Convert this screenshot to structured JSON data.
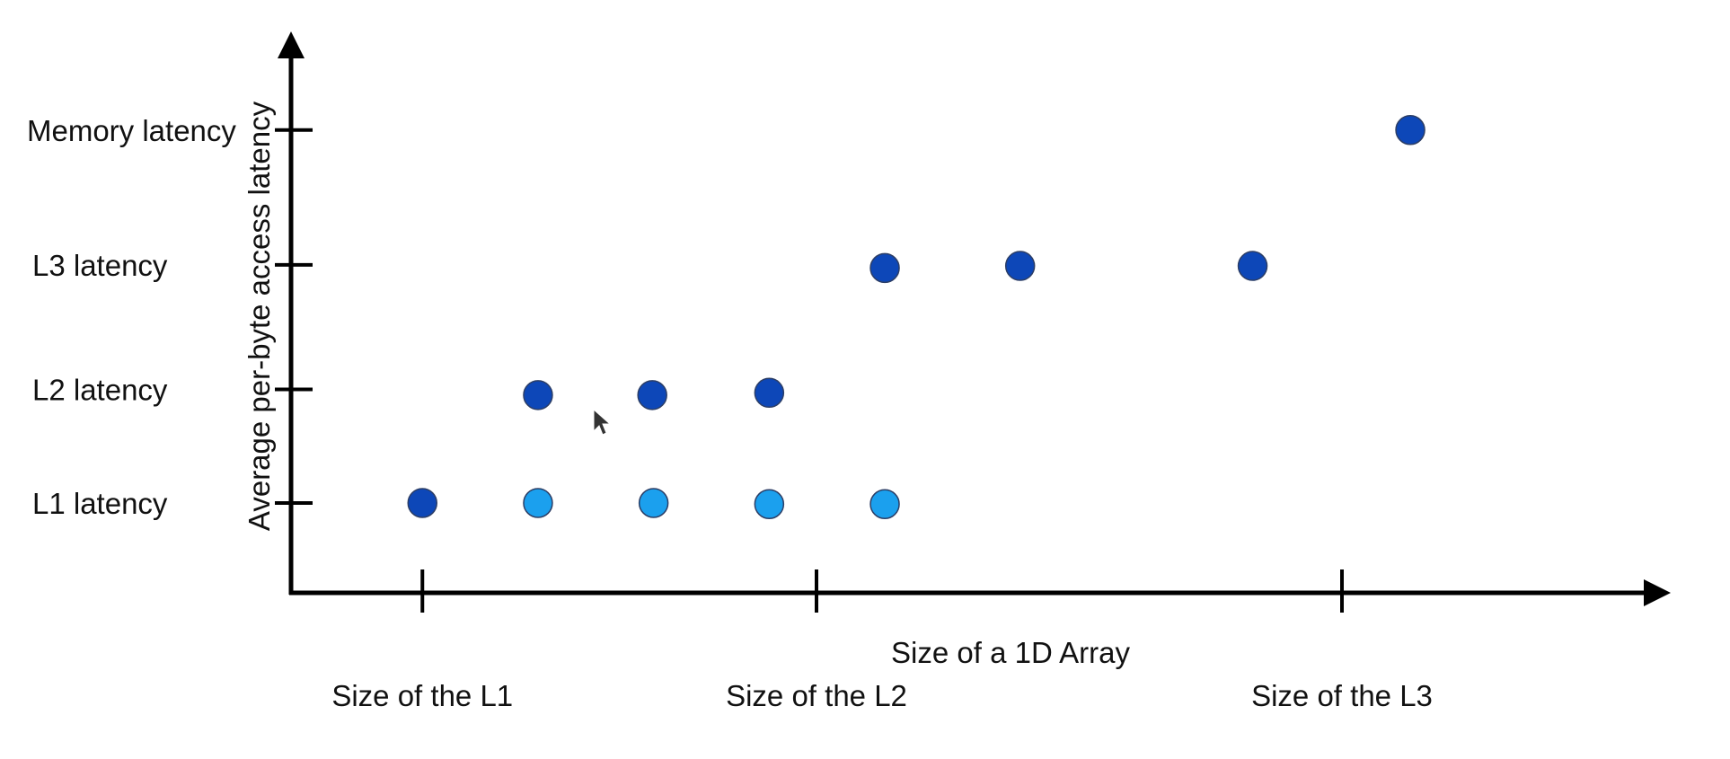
{
  "chart_data": {
    "type": "scatter",
    "title": "",
    "xlabel": "Size of a 1D Array",
    "ylabel": "Average per-byte access latency",
    "x_ticks": [
      {
        "value": 1,
        "label": "Size of the L1"
      },
      {
        "value": 4,
        "label": "Size of the L2"
      },
      {
        "value": 8,
        "label": "Size of the L3"
      }
    ],
    "y_ticks": [
      {
        "value": 1,
        "label": "L1 latency"
      },
      {
        "value": 2,
        "label": "L2 latency"
      },
      {
        "value": 3.2,
        "label": "L3 latency"
      },
      {
        "value": 4.5,
        "label": "Memory latency"
      }
    ],
    "xlim": [
      0,
      10.4
    ],
    "ylim": [
      0.3,
      4.95
    ],
    "grid": false,
    "colors": {
      "dark_point": "#0d47b8",
      "light_point": "#1ba0ee",
      "axis": "#000000"
    },
    "series": [
      {
        "color": "#0d47b8",
        "points": [
          {
            "x": 1.0,
            "y": 1.0
          },
          {
            "x": 1.88,
            "y": 1.95
          },
          {
            "x": 2.75,
            "y": 1.95
          },
          {
            "x": 3.64,
            "y": 1.97
          },
          {
            "x": 4.52,
            "y": 3.17
          },
          {
            "x": 5.55,
            "y": 3.19
          },
          {
            "x": 7.32,
            "y": 3.19
          },
          {
            "x": 8.52,
            "y": 4.5
          }
        ]
      },
      {
        "color": "#1ba0ee",
        "points": [
          {
            "x": 1.88,
            "y": 1.0
          },
          {
            "x": 2.76,
            "y": 1.0
          },
          {
            "x": 3.64,
            "y": 0.99
          },
          {
            "x": 4.52,
            "y": 0.99
          }
        ]
      }
    ]
  }
}
